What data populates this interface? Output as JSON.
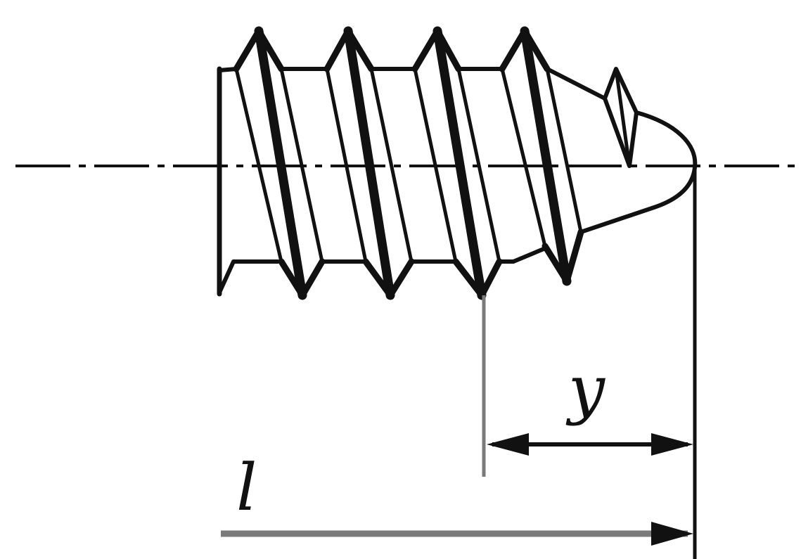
{
  "diagram": {
    "type": "technical-drawing",
    "subject": "screw-thread-end",
    "labels": {
      "y": "y",
      "l": "l"
    },
    "colors": {
      "line": "#111111",
      "dimension_line": "#7a7a7a",
      "background": "#ffffff"
    }
  }
}
